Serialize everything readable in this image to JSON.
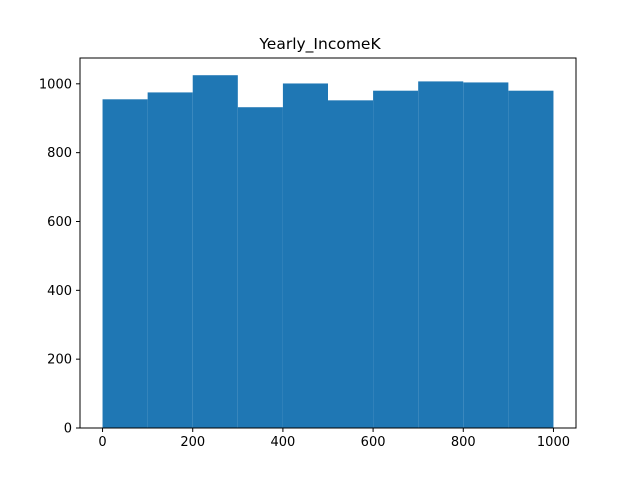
{
  "chart_data": {
    "type": "bar",
    "title": "Yearly_IncomeK",
    "xlabel": "",
    "ylabel": "",
    "bin_edges": [
      0,
      100,
      200,
      300,
      400,
      500,
      600,
      700,
      800,
      900,
      1000
    ],
    "values": [
      955,
      975,
      1025,
      932,
      1001,
      952,
      980,
      1007,
      1004,
      980
    ],
    "xlim": [
      -50,
      1050
    ],
    "ylim": [
      0,
      1075
    ],
    "xticks": [
      0,
      200,
      400,
      600,
      800,
      1000
    ],
    "yticks": [
      0,
      200,
      400,
      600,
      800,
      1000
    ],
    "bar_color": "#1f77b4",
    "grid": false,
    "legend": "none"
  }
}
